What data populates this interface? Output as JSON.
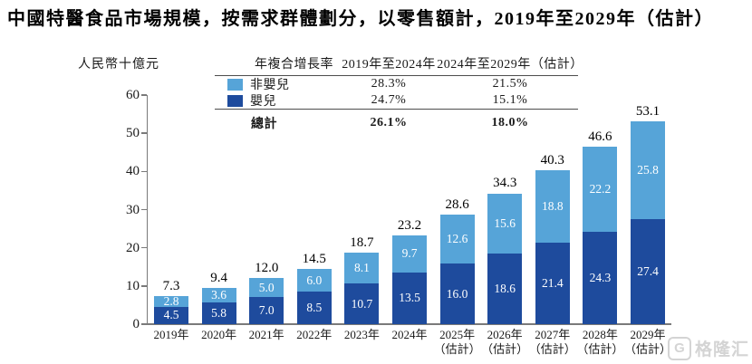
{
  "title": "中國特醫食品市場規模，按需求群體劃分，以零售額計，2019年至2029年（估計）",
  "y_axis_label": "人民幣十億元",
  "cagr_table": {
    "col_headers": [
      "年複合增長率",
      "2019年至2024年",
      "2024年至2029年（估計）"
    ],
    "rows": [
      {
        "label": "非嬰兒",
        "cagr_2019_2024": "28.3%",
        "cagr_2024_2029": "21.5%"
      },
      {
        "label": "嬰兒",
        "cagr_2019_2024": "24.7%",
        "cagr_2024_2029": "15.1%"
      }
    ],
    "total": {
      "label": "總計",
      "cagr_2019_2024": "26.1%",
      "cagr_2024_2029": "18.0%"
    }
  },
  "chart_data": {
    "type": "bar",
    "stacked": true,
    "title": "中國特醫食品市場規模，按需求群體劃分，以零售額計，2019年至2029年（估計）",
    "ylabel": "人民幣十億元",
    "ylim": [
      0,
      60
    ],
    "yticks": [
      0,
      10,
      20,
      30,
      40,
      50,
      60
    ],
    "grid": false,
    "legend_position": "table-top",
    "categories": [
      "2019年",
      "2020年",
      "2021年",
      "2022年",
      "2023年",
      "2024年",
      "2025年",
      "2026年",
      "2027年",
      "2028年",
      "2029年"
    ],
    "estimate_suffix": "（估計）",
    "estimated_from_index": 6,
    "series": [
      {
        "name": "嬰兒",
        "color": "#1e4b9d",
        "values": [
          4.5,
          5.8,
          7.0,
          8.5,
          10.7,
          13.5,
          16.0,
          18.6,
          21.4,
          24.3,
          27.4
        ]
      },
      {
        "name": "非嬰兒",
        "color": "#56a4d8",
        "values": [
          2.8,
          3.6,
          5.0,
          6.0,
          8.1,
          9.7,
          12.6,
          15.6,
          18.8,
          22.2,
          25.8
        ]
      }
    ],
    "totals": [
      7.3,
      9.4,
      12.0,
      14.5,
      18.7,
      23.2,
      28.6,
      34.3,
      40.3,
      46.6,
      53.1
    ]
  },
  "colors": {
    "infant": "#1e4b9d",
    "non_infant": "#56a4d8",
    "axis": "#7a7a7a"
  },
  "watermark": {
    "brand": "格隆汇",
    "logo_letter": "G"
  }
}
